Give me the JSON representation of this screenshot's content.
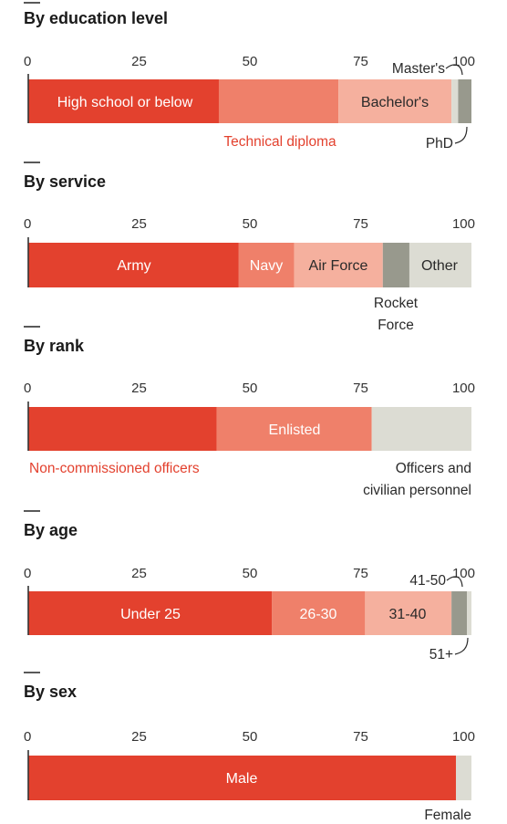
{
  "palette": {
    "red": "#e3412e",
    "salmon": "#ef806a",
    "peach": "#f5b09e",
    "grey": "#98998d",
    "light": "#dcdcd3",
    "accent_text": "#e3412e",
    "dark_text": "#2a2a2a",
    "white_text": "#ffffff"
  },
  "chart_data": [
    {
      "type": "bar",
      "stacked": true,
      "title": "By education level",
      "xlim": [
        0,
        100
      ],
      "ticks": [
        "0",
        "25",
        "50",
        "75",
        "100"
      ],
      "series": [
        {
          "name": "High school or below",
          "value": 43
        },
        {
          "name": "Technical diploma",
          "value": 27
        },
        {
          "name": "Bachelor's",
          "value": 25.5
        },
        {
          "name": "Master's",
          "value": 1.5
        },
        {
          "name": "PhD",
          "value": 3
        }
      ]
    },
    {
      "type": "bar",
      "stacked": true,
      "title": "By service",
      "xlim": [
        0,
        100
      ],
      "ticks": [
        "0",
        "25",
        "50",
        "75",
        "100"
      ],
      "series": [
        {
          "name": "Army",
          "value": 47.5
        },
        {
          "name": "Navy",
          "value": 12.5
        },
        {
          "name": "Air Force",
          "value": 20
        },
        {
          "name": "Rocket Force",
          "value": 6
        },
        {
          "name": "Other",
          "value": 14
        }
      ]
    },
    {
      "type": "bar",
      "stacked": true,
      "title": "By rank",
      "xlim": [
        0,
        100
      ],
      "ticks": [
        "0",
        "25",
        "50",
        "75",
        "100"
      ],
      "series": [
        {
          "name": "Non-commissioned officers",
          "value": 42.5
        },
        {
          "name": "Enlisted",
          "value": 35
        },
        {
          "name": "Officers and civilian personnel",
          "value": 22.5
        }
      ]
    },
    {
      "type": "bar",
      "stacked": true,
      "title": "By age",
      "xlim": [
        0,
        100
      ],
      "ticks": [
        "0",
        "25",
        "50",
        "75",
        "100"
      ],
      "series": [
        {
          "name": "Under 25",
          "value": 55
        },
        {
          "name": "26-30",
          "value": 21
        },
        {
          "name": "31-40",
          "value": 19.5
        },
        {
          "name": "41-50",
          "value": 3.5
        },
        {
          "name": "51+",
          "value": 1
        }
      ]
    },
    {
      "type": "bar",
      "stacked": true,
      "title": "By sex",
      "xlim": [
        0,
        100
      ],
      "ticks": [
        "0",
        "25",
        "50",
        "75",
        "100"
      ],
      "series": [
        {
          "name": "Male",
          "value": 96.5
        },
        {
          "name": "Female",
          "value": 3.5
        }
      ]
    }
  ],
  "labels": {
    "education": {
      "high_school": "High school or below",
      "technical": "Technical diploma",
      "bachelors": "Bachelor's",
      "masters": "Master's",
      "phd": "PhD"
    },
    "service": {
      "army": "Army",
      "navy": "Navy",
      "air_force": "Air Force",
      "other": "Other",
      "rocket_1": "Rocket",
      "rocket_2": "Force"
    },
    "rank": {
      "enlisted": "Enlisted",
      "nco": "Non-commissioned officers",
      "officers_1": "Officers and",
      "officers_2": "civilian personnel"
    },
    "age": {
      "under25": "Under 25",
      "a26_30": "26-30",
      "a31_40": "31-40",
      "a41_50": "41-50",
      "a51": "51+"
    },
    "sex": {
      "male": "Male",
      "female": "Female"
    }
  }
}
